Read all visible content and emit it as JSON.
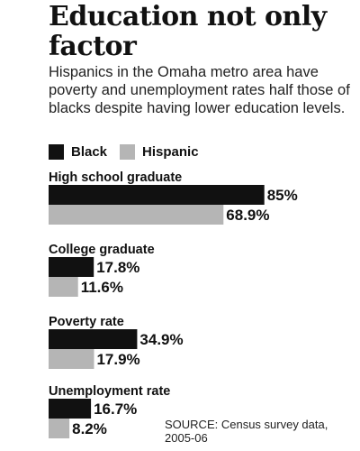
{
  "title": "Education not only factor",
  "subtitle": "Hispanics in the Omaha metro area have poverty and unemployment rates half those of blacks despite having lower education levels.",
  "source": "SOURCE: Census survey data, 2005-06",
  "colors": {
    "black_series": "#111111",
    "hispanic_series": "#b5b5b5"
  },
  "legend": {
    "black_label": "Black",
    "hispanic_label": "Hispanic"
  },
  "chart_data": {
    "type": "bar",
    "orientation": "horizontal",
    "categories": [
      "High school graduate",
      "College graduate",
      "Poverty rate",
      "Unemployment rate"
    ],
    "series": [
      {
        "name": "Black",
        "values": [
          85,
          17.8,
          34.9,
          16.7
        ],
        "labels": [
          "85%",
          "17.8%",
          "34.9%",
          "16.7%"
        ]
      },
      {
        "name": "Hispanic",
        "values": [
          68.9,
          11.6,
          17.9,
          8.2
        ],
        "labels": [
          "68.9%",
          "11.6%",
          "17.9%",
          "8.2%"
        ]
      }
    ],
    "title": "Education not only factor",
    "xlabel": "",
    "ylabel": "",
    "xlim": [
      0,
      100
    ],
    "grid": false,
    "legend_position": "top-left"
  }
}
